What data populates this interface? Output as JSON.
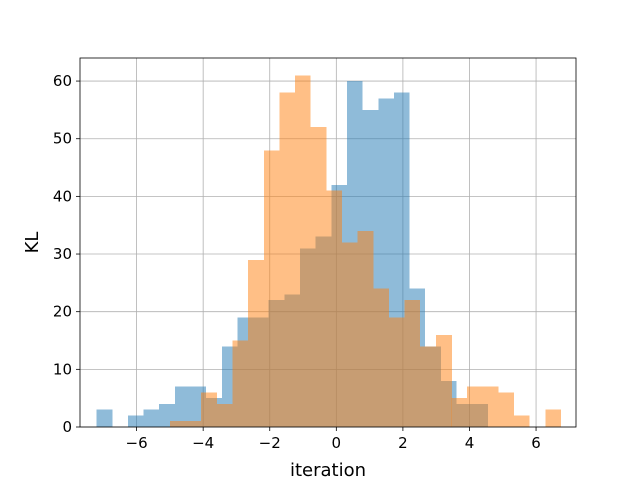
{
  "chart_data": {
    "type": "bar",
    "xlabel": "iteration",
    "ylabel": "KL",
    "xlim": [
      -7.7,
      7.2
    ],
    "ylim": [
      0,
      64
    ],
    "x_ticks": [
      -6,
      -4,
      -2,
      0,
      2,
      4,
      6
    ],
    "x_tick_labels": [
      "−6",
      "−4",
      "−2",
      "0",
      "2",
      "4",
      "6"
    ],
    "y_ticks": [
      0,
      10,
      20,
      30,
      40,
      50,
      60
    ],
    "y_tick_labels": [
      "0",
      "10",
      "20",
      "30",
      "40",
      "50",
      "60"
    ],
    "grid": true,
    "bin_width": 0.47,
    "series": [
      {
        "color": "#1f77b4",
        "opacity": 0.5,
        "bin_starts": [
          -7.2,
          -6.73,
          -6.26,
          -5.79,
          -5.32,
          -4.85,
          -4.38,
          -3.91,
          -3.44,
          -2.97,
          -2.5,
          -2.03,
          -1.56,
          -1.09,
          -0.62,
          -0.15,
          0.32,
          0.79,
          1.26,
          1.73,
          2.2,
          2.67,
          3.14,
          3.61,
          4.08
        ],
        "values": [
          3,
          0,
          2,
          3,
          4,
          7,
          7,
          5,
          14,
          19,
          19,
          22,
          23,
          31,
          33,
          42,
          60,
          55,
          57,
          58,
          24,
          14,
          8,
          4,
          4
        ]
      },
      {
        "color": "#ff7f0e",
        "opacity": 0.5,
        "bin_starts": [
          -5.0,
          -4.53,
          -4.06,
          -3.59,
          -3.12,
          -2.65,
          -2.18,
          -1.71,
          -1.24,
          -0.77,
          -0.3,
          0.17,
          0.64,
          1.11,
          1.58,
          2.05,
          2.52,
          3.0,
          3.46,
          3.93,
          4.4,
          4.87,
          5.34,
          5.81,
          6.28
        ],
        "values": [
          1,
          1,
          6,
          4,
          15,
          29,
          48,
          58,
          61,
          52,
          41,
          32,
          34,
          24,
          19,
          22,
          14,
          16,
          5,
          7,
          7,
          6,
          2,
          0,
          3
        ]
      }
    ]
  }
}
